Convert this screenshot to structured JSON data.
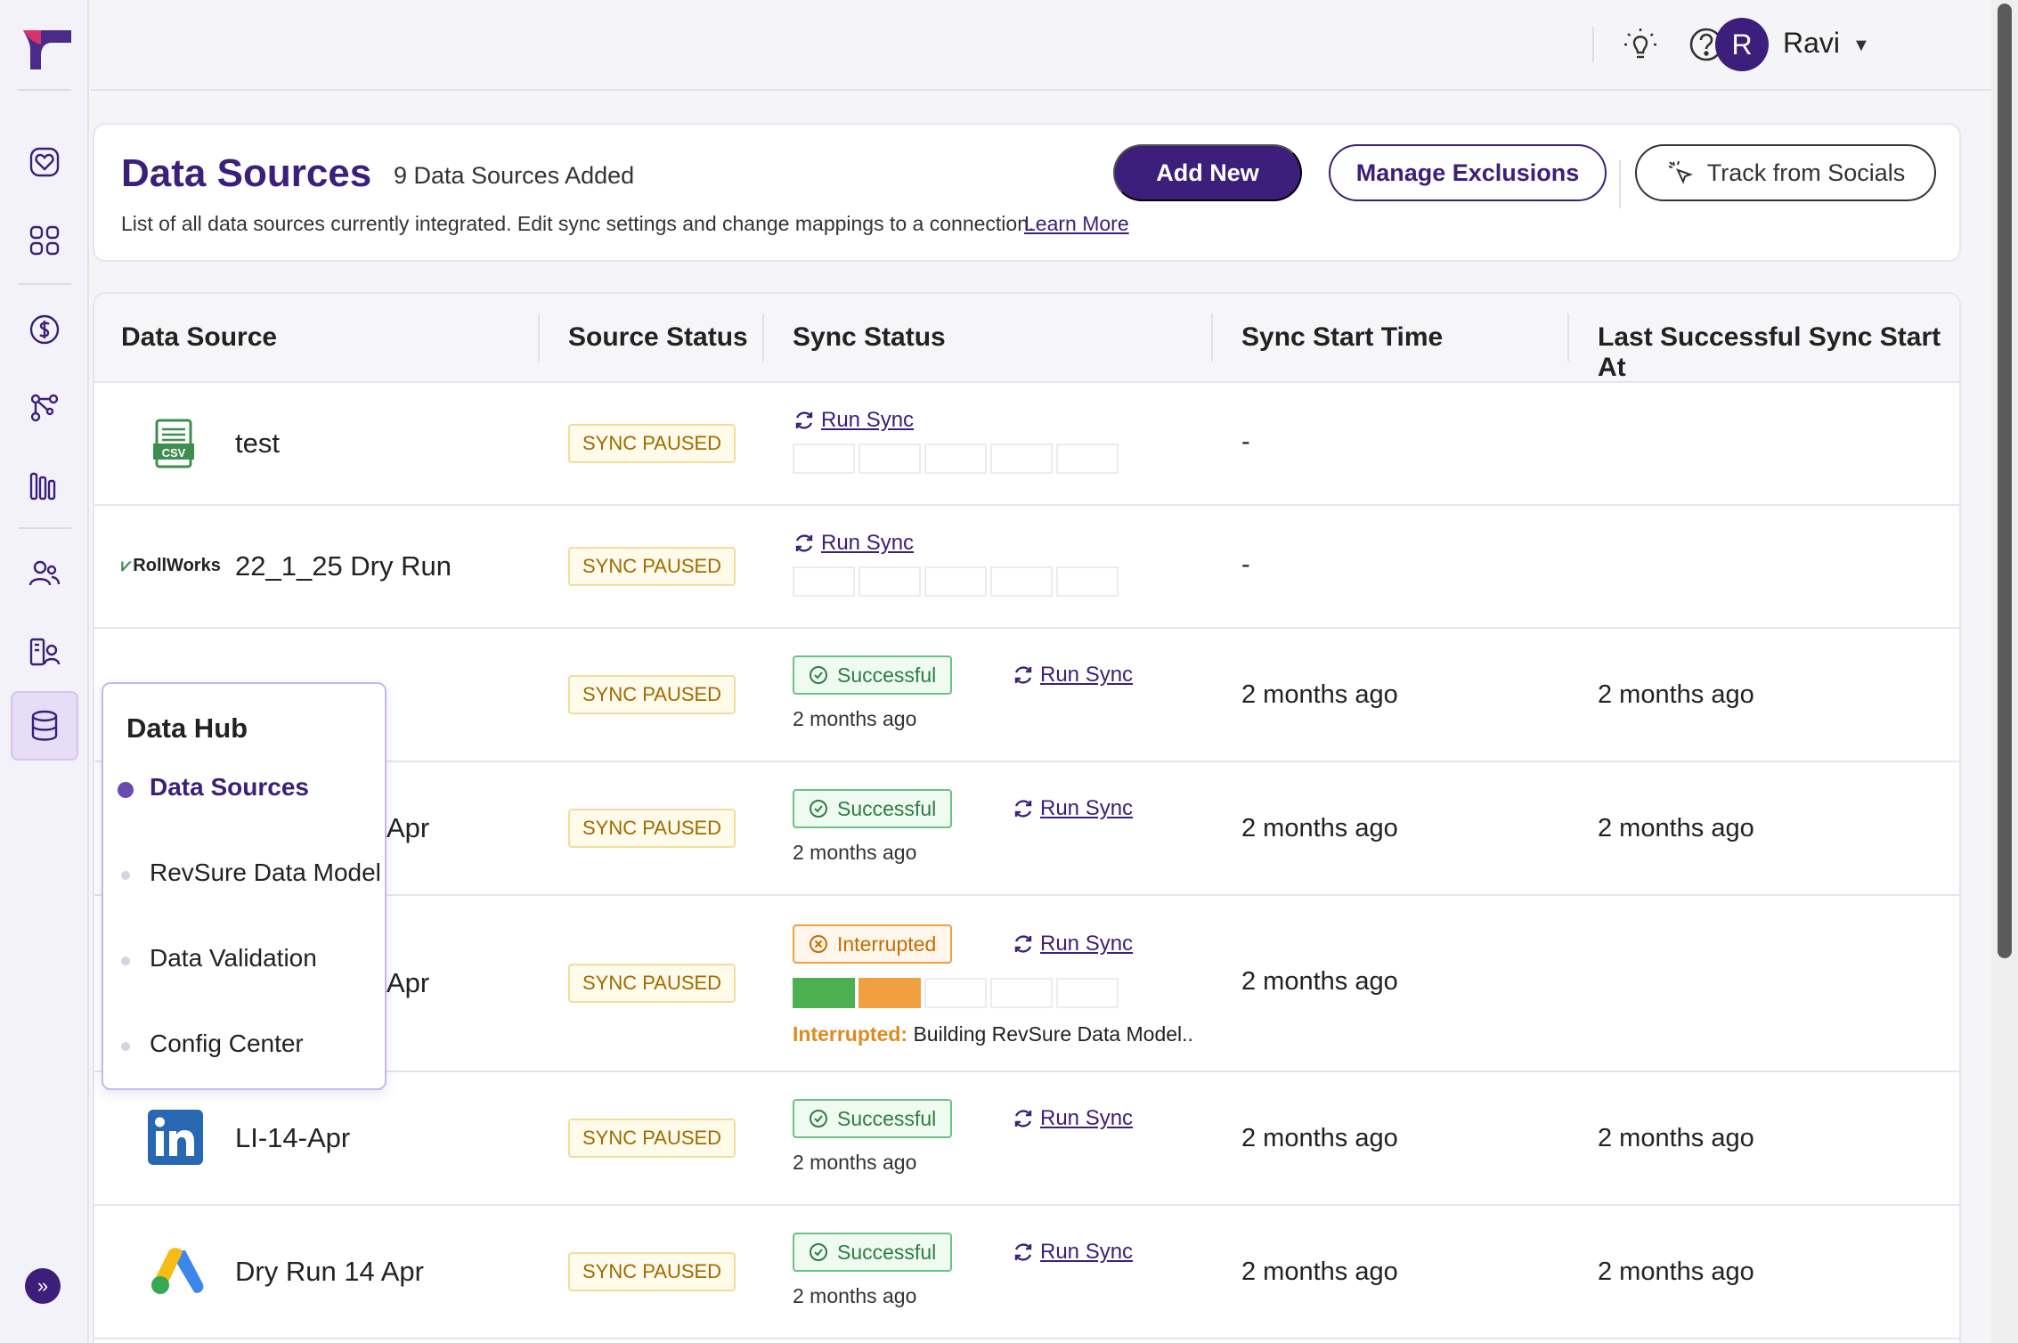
{
  "user": {
    "initial": "R",
    "name": "Ravi"
  },
  "header": {
    "title": "Data Sources",
    "count_text": "9 Data Sources Added",
    "description": "List of all data sources currently integrated. Edit sync settings and change mappings to a connection.",
    "learn_more": "Learn More",
    "add_new": "Add New",
    "manage_exclusions": "Manage Exclusions",
    "track_socials": "Track from Socials"
  },
  "table": {
    "columns": [
      "Data Source",
      "Source Status",
      "Sync Status",
      "Sync Start Time",
      "Last Successful Sync Start At"
    ],
    "rows": [
      {
        "logo": "csv-icon",
        "logo_text": "CSV",
        "name": "test",
        "source_status": "SYNC PAUSED",
        "run_sync": "Run Sync",
        "sync_start": "-"
      },
      {
        "logo": "rollworks-icon",
        "logo_text": "RollWorks",
        "name": "22_1_25 Dry Run",
        "source_status": "SYNC PAUSED",
        "run_sync": "Run Sync",
        "sync_start": "-"
      },
      {
        "name": "",
        "source_status": "SYNC PAUSED",
        "sync_badge": "Successful",
        "sync_ago": "2 months ago",
        "run_sync": "Run Sync",
        "sync_start": "2 months ago",
        "last_success": "2 months ago"
      },
      {
        "name": "Apr",
        "source_status": "SYNC PAUSED",
        "sync_badge": "Successful",
        "sync_ago": "2 months ago",
        "run_sync": "Run Sync",
        "sync_start": "2 months ago",
        "last_success": "2 months ago"
      },
      {
        "name": "Apr",
        "source_status": "SYNC PAUSED",
        "sync_badge": "Interrupted",
        "run_sync": "Run Sync",
        "sync_start": "2 months ago",
        "interrupt_label": "Interrupted:",
        "interrupt_msg": "Building RevSure Data Model.."
      },
      {
        "logo": "linkedin-icon",
        "name": "LI-14-Apr",
        "source_status": "SYNC PAUSED",
        "sync_badge": "Successful",
        "sync_ago": "2 months ago",
        "run_sync": "Run Sync",
        "sync_start": "2 months ago",
        "last_success": "2 months ago"
      },
      {
        "logo": "google-ads-icon",
        "name": "Dry Run 14 Apr",
        "source_status": "SYNC PAUSED",
        "sync_badge": "Successful",
        "sync_ago": "2 months ago",
        "run_sync": "Run Sync",
        "sync_start": "2 months ago",
        "last_success": "2 months ago"
      }
    ]
  },
  "popover": {
    "title": "Data Hub",
    "items": [
      "Data Sources",
      "RevSure Data Model",
      "Data Validation",
      "Config Center"
    ]
  },
  "colors": {
    "brand": "#3b1f7a",
    "success": "#4caf50",
    "warning": "#f0a040",
    "paused": "#a06a00"
  }
}
